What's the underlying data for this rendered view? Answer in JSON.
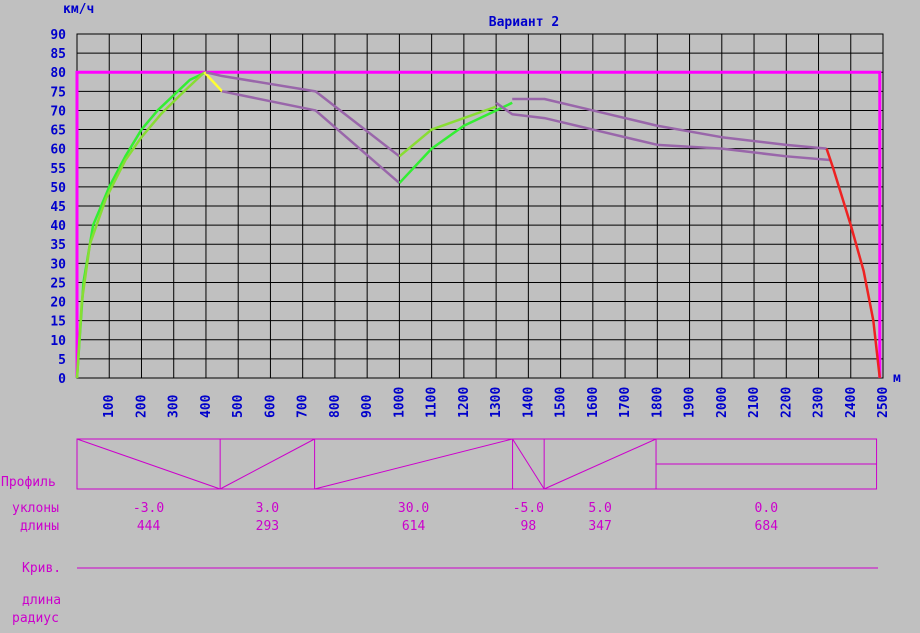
{
  "chart_data": {
    "type": "line",
    "title": "Вариант 2",
    "ylabel": "км/ч",
    "xlabel": "м",
    "xlim": [
      0,
      2500
    ],
    "ylim": [
      0,
      90
    ],
    "x_ticks": [
      100,
      200,
      300,
      400,
      500,
      600,
      700,
      800,
      900,
      1000,
      1100,
      1200,
      1300,
      1400,
      1500,
      1600,
      1700,
      1800,
      1900,
      2000,
      2100,
      2200,
      2300,
      2400,
      2500
    ],
    "y_ticks": [
      0,
      5,
      10,
      15,
      20,
      25,
      30,
      35,
      40,
      45,
      50,
      55,
      60,
      65,
      70,
      75,
      80,
      85,
      90
    ],
    "grid": true,
    "speed_limit": {
      "value": 80,
      "x_start": 0,
      "x_end": 2490,
      "color": "#ff00ff"
    },
    "series": [
      {
        "color": "#33ee33",
        "x": [
          0,
          20,
          50,
          100,
          150,
          200,
          250,
          300,
          350,
          400
        ],
        "y": [
          0,
          25,
          40,
          50,
          58,
          65,
          70,
          74,
          78,
          80
        ]
      },
      {
        "color": "#88dd33",
        "x": [
          0,
          15,
          40,
          90,
          150,
          200,
          260,
          320,
          370,
          395
        ],
        "y": [
          0,
          20,
          35,
          47,
          57,
          63,
          69,
          74,
          78,
          80
        ]
      },
      {
        "color": "#ffff33",
        "x": [
          395,
          450
        ],
        "y": [
          80,
          75
        ]
      },
      {
        "color": "#9966aa",
        "x": [
          400,
          450,
          740,
          1000
        ],
        "y": [
          80,
          79,
          75,
          58
        ]
      },
      {
        "color": "#9966aa",
        "x": [
          450,
          740,
          1000
        ],
        "y": [
          75,
          70,
          51
        ]
      },
      {
        "color": "#33ee33",
        "x": [
          1000,
          1100,
          1200,
          1300,
          1350
        ],
        "y": [
          51,
          60,
          66,
          70,
          72
        ]
      },
      {
        "color": "#88dd33",
        "x": [
          1000,
          1100,
          1200,
          1300
        ],
        "y": [
          58,
          65,
          68,
          71
        ]
      },
      {
        "color": "#9966aa",
        "x": [
          1350,
          1450,
          1600,
          1800,
          2000,
          2200,
          2325
        ],
        "y": [
          73,
          73,
          70,
          66,
          63,
          61,
          60
        ]
      },
      {
        "color": "#9966aa",
        "x": [
          1300,
          1350,
          1450,
          1600,
          1800,
          2000,
          2200,
          2340
        ],
        "y": [
          72,
          69,
          68,
          65,
          61,
          60,
          58,
          57
        ]
      },
      {
        "color": "#ee2222",
        "x": [
          2325,
          2345,
          2400,
          2440,
          2470,
          2490
        ],
        "y": [
          60,
          55,
          40,
          28,
          15,
          0
        ]
      }
    ]
  },
  "profile": {
    "label": "Профиль",
    "slopes_label": "уклоны",
    "lengths_label": "длины",
    "segments": [
      {
        "x_start": 0,
        "x_end": 444,
        "slope": "-3.0",
        "length": "444",
        "shape": "down"
      },
      {
        "x_start": 444,
        "x_end": 737,
        "slope": "3.0",
        "length": "293",
        "shape": "up"
      },
      {
        "x_start": 737,
        "x_end": 1351,
        "slope": "30.0",
        "length": "614",
        "shape": "up"
      },
      {
        "x_start": 1351,
        "x_end": 1449,
        "slope": "-5.0",
        "length": "98",
        "shape": "down"
      },
      {
        "x_start": 1449,
        "x_end": 1796,
        "slope": "5.0",
        "length": "347",
        "shape": "up"
      },
      {
        "x_start": 1796,
        "x_end": 2480,
        "slope": "0.0",
        "length": "684",
        "shape": "flat"
      }
    ]
  },
  "curves": {
    "label": "Крив.",
    "length_label": "длина",
    "radius_label": "радиус"
  },
  "colors": {
    "background": "#c0c0c0",
    "axis_text": "#0000cc",
    "profile": "#cc00cc",
    "grid": "#000000"
  }
}
